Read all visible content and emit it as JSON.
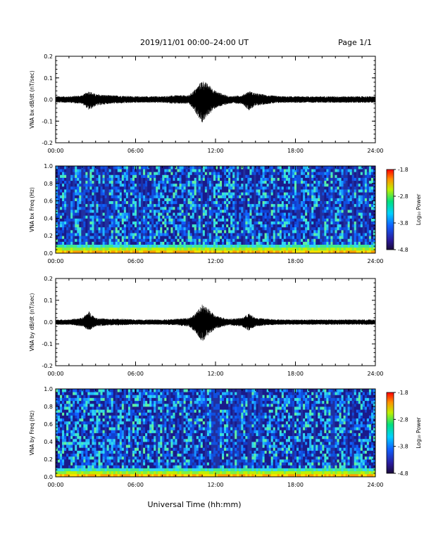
{
  "header": {
    "title": "2019/11/01  00:00–24:00 UT",
    "page": "Page 1/1"
  },
  "footer": {
    "xlabel": "Universal Time (hh:mm)"
  },
  "chart_data": [
    {
      "type": "line",
      "ylabel": "VNA bx dB/dt (nT/sec)",
      "xlabel": "",
      "xlim": [
        0,
        24
      ],
      "ylim": [
        -0.2,
        0.2
      ],
      "x_ticks": [
        "00:00",
        "06:00",
        "12:00",
        "18:00",
        "24:00"
      ],
      "y_ticks": [
        "-0.2",
        "-0.1",
        "0.0",
        "0.1",
        "0.2"
      ],
      "envelope": {
        "x_hours": [
          0,
          1,
          2,
          2.5,
          3,
          4,
          5,
          6,
          7,
          8,
          9,
          10,
          10.5,
          11,
          11.5,
          12,
          13,
          14,
          14.5,
          15,
          16,
          17,
          18,
          19,
          20,
          21,
          22,
          23,
          24
        ],
        "upper": [
          0.015,
          0.015,
          0.02,
          0.04,
          0.025,
          0.02,
          0.018,
          0.015,
          0.015,
          0.015,
          0.02,
          0.02,
          0.05,
          0.09,
          0.07,
          0.04,
          0.015,
          0.02,
          0.04,
          0.03,
          0.02,
          0.015,
          0.015,
          0.015,
          0.015,
          0.015,
          0.015,
          0.015,
          0.015
        ],
        "lower": [
          -0.015,
          -0.015,
          -0.02,
          -0.05,
          -0.03,
          -0.02,
          -0.018,
          -0.015,
          -0.015,
          -0.015,
          -0.02,
          -0.02,
          -0.06,
          -0.11,
          -0.07,
          -0.04,
          -0.02,
          -0.02,
          -0.05,
          -0.03,
          -0.02,
          -0.015,
          -0.015,
          -0.015,
          -0.015,
          -0.015,
          -0.015,
          -0.015,
          -0.015
        ]
      },
      "color": "#000000"
    },
    {
      "type": "heatmap",
      "ylabel": "VNA bx Freq (Hz)",
      "colorbar_label": "Log₁₀ Power",
      "xlim": [
        0,
        24
      ],
      "ylim": [
        0.0,
        1.0
      ],
      "clim": [
        -4.8,
        -1.8
      ],
      "x_ticks": [
        "00:00",
        "06:00",
        "12:00",
        "18:00",
        "24:00"
      ],
      "y_ticks": [
        "0.0",
        "0.2",
        "0.4",
        "0.6",
        "0.8",
        "1.0"
      ],
      "cbar_ticks": [
        "-1.8",
        "-2.8",
        "-3.8",
        "-4.8"
      ]
    },
    {
      "type": "line",
      "ylabel": "VNA by dB/dt (nT/sec)",
      "xlabel": "",
      "xlim": [
        0,
        24
      ],
      "ylim": [
        -0.2,
        0.2
      ],
      "x_ticks": [
        "00:00",
        "06:00",
        "12:00",
        "18:00",
        "24:00"
      ],
      "y_ticks": [
        "-0.2",
        "-0.1",
        "0.0",
        "0.1",
        "0.2"
      ],
      "envelope": {
        "x_hours": [
          0,
          1,
          2,
          2.5,
          3,
          4,
          5,
          6,
          7,
          8,
          9,
          10,
          10.5,
          11,
          11.5,
          12,
          13,
          14,
          14.5,
          15,
          16,
          17,
          18,
          19,
          20,
          21,
          22,
          23,
          24
        ],
        "upper": [
          0.012,
          0.012,
          0.02,
          0.05,
          0.02,
          0.015,
          0.015,
          0.012,
          0.012,
          0.012,
          0.015,
          0.02,
          0.04,
          0.08,
          0.06,
          0.03,
          0.015,
          0.02,
          0.04,
          0.02,
          0.015,
          0.012,
          0.012,
          0.012,
          0.012,
          0.012,
          0.012,
          0.012,
          0.012
        ],
        "lower": [
          -0.012,
          -0.012,
          -0.02,
          -0.04,
          -0.02,
          -0.015,
          -0.015,
          -0.012,
          -0.012,
          -0.012,
          -0.015,
          -0.02,
          -0.05,
          -0.09,
          -0.06,
          -0.03,
          -0.015,
          -0.02,
          -0.04,
          -0.02,
          -0.015,
          -0.012,
          -0.012,
          -0.012,
          -0.012,
          -0.012,
          -0.012,
          -0.012,
          -0.012
        ]
      },
      "color": "#000000"
    },
    {
      "type": "heatmap",
      "ylabel": "VNA by Freq (Hz)",
      "colorbar_label": "Log₁₀ Power",
      "xlim": [
        0,
        24
      ],
      "ylim": [
        0.0,
        1.0
      ],
      "clim": [
        -4.8,
        -1.8
      ],
      "x_ticks": [
        "00:00",
        "06:00",
        "12:00",
        "18:00",
        "24:00"
      ],
      "y_ticks": [
        "0.0",
        "0.2",
        "0.4",
        "0.6",
        "0.8",
        "1.0"
      ],
      "cbar_ticks": [
        "-1.8",
        "-2.8",
        "-3.8",
        "-4.8"
      ]
    }
  ]
}
